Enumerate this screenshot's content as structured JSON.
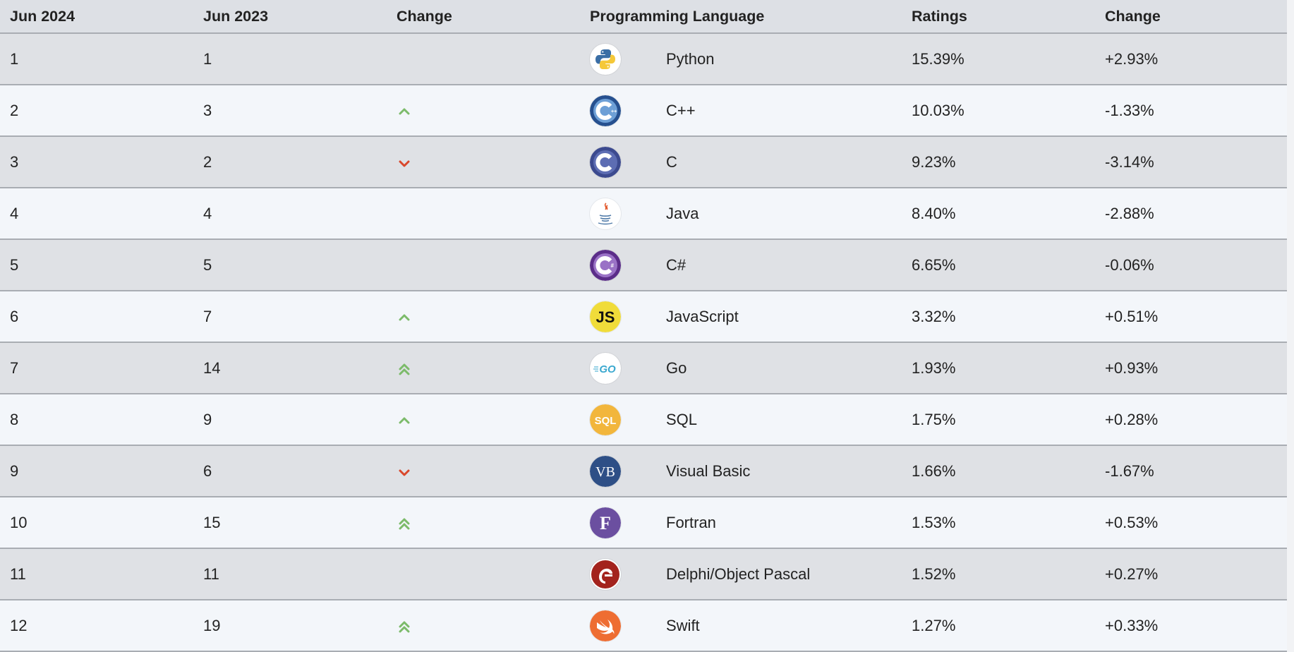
{
  "headers": {
    "col1": "Jun 2024",
    "col2": "Jun 2023",
    "col3": "Change",
    "col4": "Programming Language",
    "col5": "Ratings",
    "col6": "Change"
  },
  "colors": {
    "up": "#7cbb6a",
    "down": "#d9472b"
  },
  "rows": [
    {
      "rank2024": "1",
      "rank2023": "1",
      "trend": "none",
      "logo": "python-logo",
      "language": "Python",
      "rating": "15.39%",
      "change": "+2.93%"
    },
    {
      "rank2024": "2",
      "rank2023": "3",
      "trend": "up",
      "logo": "cpp-logo",
      "language": "C++",
      "rating": "10.03%",
      "change": "-1.33%"
    },
    {
      "rank2024": "3",
      "rank2023": "2",
      "trend": "down",
      "logo": "c-logo",
      "language": "C",
      "rating": "9.23%",
      "change": "-3.14%"
    },
    {
      "rank2024": "4",
      "rank2023": "4",
      "trend": "none",
      "logo": "java-logo",
      "language": "Java",
      "rating": "8.40%",
      "change": "-2.88%"
    },
    {
      "rank2024": "5",
      "rank2023": "5",
      "trend": "none",
      "logo": "csharp-logo",
      "language": "C#",
      "rating": "6.65%",
      "change": "-0.06%"
    },
    {
      "rank2024": "6",
      "rank2023": "7",
      "trend": "up",
      "logo": "javascript-logo",
      "language": "JavaScript",
      "rating": "3.32%",
      "change": "+0.51%"
    },
    {
      "rank2024": "7",
      "rank2023": "14",
      "trend": "double-up",
      "logo": "go-logo",
      "language": "Go",
      "rating": "1.93%",
      "change": "+0.93%"
    },
    {
      "rank2024": "8",
      "rank2023": "9",
      "trend": "up",
      "logo": "sql-logo",
      "language": "SQL",
      "rating": "1.75%",
      "change": "+0.28%"
    },
    {
      "rank2024": "9",
      "rank2023": "6",
      "trend": "down",
      "logo": "visual-basic-logo",
      "language": "Visual Basic",
      "rating": "1.66%",
      "change": "-1.67%"
    },
    {
      "rank2024": "10",
      "rank2023": "15",
      "trend": "double-up",
      "logo": "fortran-logo",
      "language": "Fortran",
      "rating": "1.53%",
      "change": "+0.53%"
    },
    {
      "rank2024": "11",
      "rank2023": "11",
      "trend": "none",
      "logo": "delphi-logo",
      "language": "Delphi/Object Pascal",
      "rating": "1.52%",
      "change": "+0.27%"
    },
    {
      "rank2024": "12",
      "rank2023": "19",
      "trend": "double-up",
      "logo": "swift-logo",
      "language": "Swift",
      "rating": "1.27%",
      "change": "+0.33%"
    }
  ],
  "logo_text": {
    "javascript-logo": "JS",
    "go-logo": "GO",
    "sql-logo": "SQL",
    "visual-basic-logo": "VB",
    "fortran-logo": "F"
  }
}
